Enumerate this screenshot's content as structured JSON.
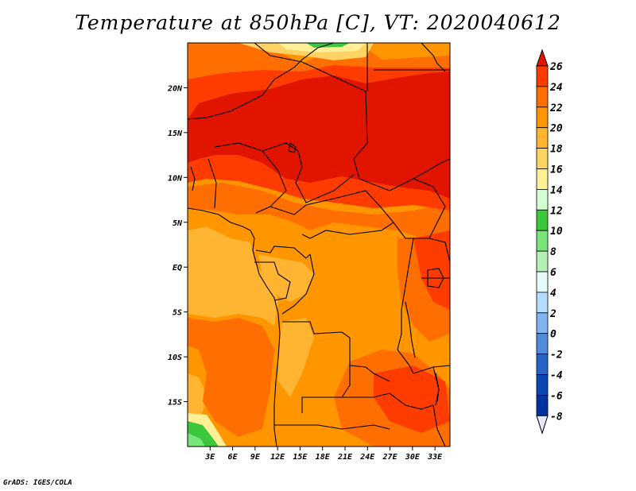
{
  "title": "Temperature at 850hPa [C], VT: 2020040612",
  "footer": "GrADS: IGES/COLA",
  "map": {
    "lon_ticks": [
      "3E",
      "6E",
      "9E",
      "12E",
      "15E",
      "18E",
      "21E",
      "24E",
      "27E",
      "30E",
      "33E"
    ],
    "lon_values": [
      3,
      6,
      9,
      12,
      15,
      18,
      21,
      24,
      27,
      30,
      33
    ],
    "lat_ticks": [
      "20N",
      "15N",
      "10N",
      "5N",
      "EQ",
      "5S",
      "10S",
      "15S"
    ],
    "lat_values": [
      20,
      15,
      10,
      5,
      0,
      -5,
      -10,
      -15
    ],
    "lon_range": [
      0,
      35
    ],
    "lat_range": [
      -20,
      25
    ]
  },
  "colorbar": {
    "levels": [
      "26",
      "24",
      "22",
      "20",
      "18",
      "16",
      "14",
      "12",
      "10",
      "8",
      "6",
      "4",
      "2",
      "0",
      "-2",
      "-4",
      "-6",
      "-8"
    ],
    "colors": [
      "#ff3c00",
      "#ff6e00",
      "#ff9600",
      "#ffb432",
      "#ffd264",
      "#fff096",
      "#d2ffd2",
      "#3cc83c",
      "#78e678",
      "#b4f0b4",
      "#e6fafa",
      "#b4dcff",
      "#82b4f0",
      "#508cdc",
      "#2864c8",
      "#0a46b4",
      "#0032a0",
      "#00006e",
      "#e6e6ff"
    ],
    "top_color": "#e11400"
  },
  "colors": {
    "t26": "#e11400",
    "t24": "#ff3c00",
    "t22": "#ff6e00",
    "t20": "#ff9600",
    "t18": "#ffb432",
    "t16": "#ffd264",
    "t14": "#fff096",
    "t12": "#3cc83c",
    "t10": "#78e678"
  }
}
